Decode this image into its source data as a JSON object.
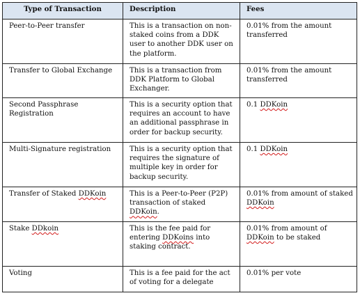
{
  "table": {
    "headers": {
      "type": "Type of Transaction",
      "description": "Description",
      "fees": "Fees"
    },
    "rows": [
      {
        "type": [
          "Peer-to-Peer transfer"
        ],
        "description": [
          "This is a transaction on non-staked coins from a DDK user to another DDK user on the platform."
        ],
        "fees": [
          "0.01% from the amount transferred"
        ]
      },
      {
        "type": [
          "Transfer to Global Exchange"
        ],
        "description": [
          "This is a transaction from DDK Platform to Global Exchanger."
        ],
        "fees": [
          "0.01% from the amount transferred"
        ]
      },
      {
        "type": [
          "Second Passphrase Registration"
        ],
        "description": [
          "This is a security option that requires an account to have an additional passphrase in order for backup security."
        ],
        "fees": [
          "0.1 ",
          "DDKoin"
        ]
      },
      {
        "type": [
          "Multi-Signature registration"
        ],
        "description": [
          "This is a security option that requires the signature of multiple key in order for backup security."
        ],
        "fees": [
          "0.1 ",
          "DDKoin"
        ]
      },
      {
        "type": [
          "Transfer of Staked ",
          "DDKoin"
        ],
        "description": [
          "This is a Peer-to-Peer (P2P) transaction of staked ",
          "DDKoin",
          "."
        ],
        "fees": [
          "0.01% from amount of staked ",
          "DDKoin"
        ]
      },
      {
        "type": [
          "Stake ",
          "DDkoin"
        ],
        "description": [
          "This is the fee paid for entering ",
          "DDKoins",
          " into staking contract."
        ],
        "fees": [
          "0.01% from amount of ",
          "DDKoin",
          " to be staked"
        ]
      },
      {
        "type": [
          "Voting"
        ],
        "description": [
          "This is a fee paid for the act of voting for a delegate"
        ],
        "fees": [
          "0.01% per vote"
        ]
      }
    ]
  }
}
